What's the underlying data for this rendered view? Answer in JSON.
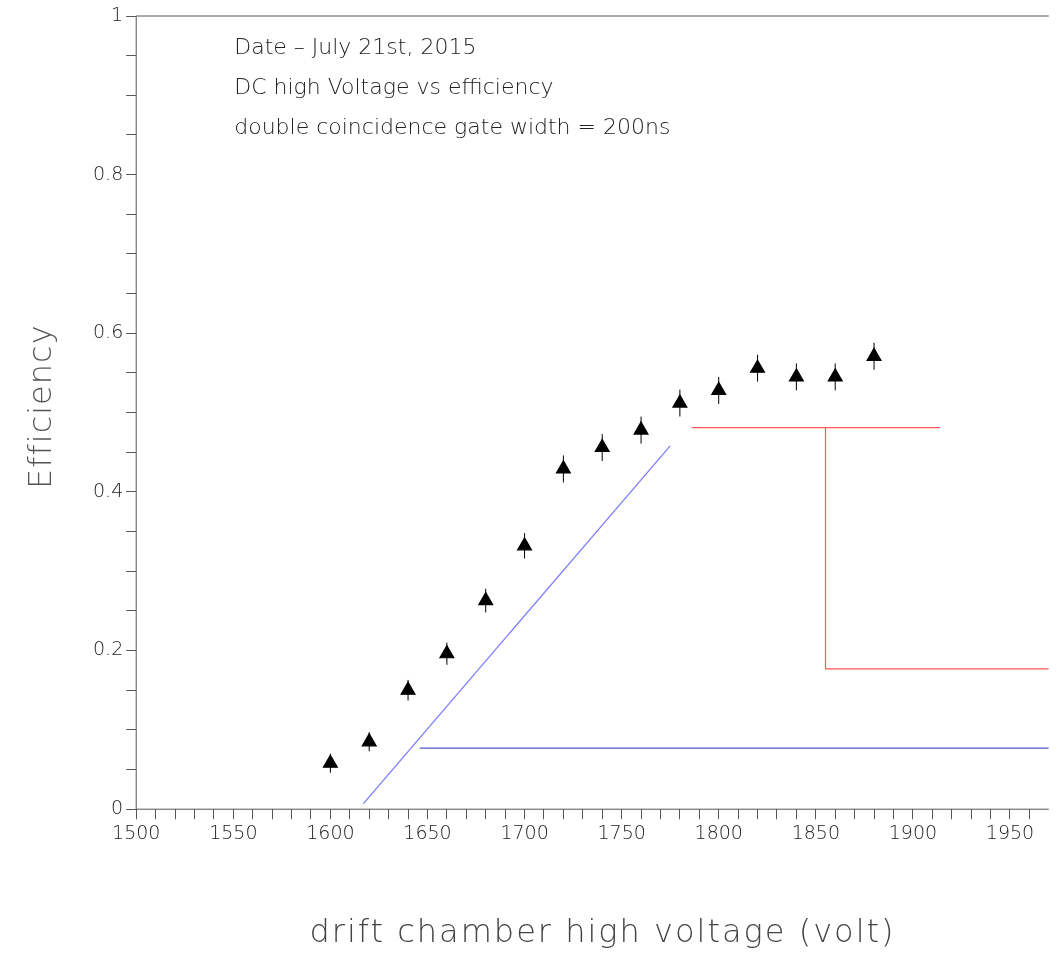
{
  "chart_data": {
    "type": "scatter",
    "xlabel": "drift chamber high voltage (volt)",
    "ylabel": "Efficiency",
    "annotations": [
      "Date – July 21st, 2015",
      "DC high Voltage vs efficiency",
      "double coincidence gate width = 200ns"
    ],
    "xlim": [
      1500,
      1970
    ],
    "ylim": [
      0,
      1
    ],
    "xticks": [
      1500,
      {
        "value": 1510,
        "label": null
      },
      {
        "value": 1520,
        "label": null
      },
      {
        "value": 1530,
        "label": null
      },
      {
        "value": 1540,
        "label": null
      },
      1550,
      {
        "value": 1560,
        "label": null
      },
      {
        "value": 1570,
        "label": null
      },
      {
        "value": 1580,
        "label": null
      },
      {
        "value": 1590,
        "label": null
      },
      1600,
      {
        "value": 1610,
        "label": null
      },
      {
        "value": 1620,
        "label": null
      },
      {
        "value": 1630,
        "label": null
      },
      {
        "value": 1640,
        "label": null
      },
      1650,
      {
        "value": 1660,
        "label": null
      },
      {
        "value": 1670,
        "label": null
      },
      {
        "value": 1680,
        "label": null
      },
      {
        "value": 1690,
        "label": null
      },
      1700,
      {
        "value": 1710,
        "label": null
      },
      {
        "value": 1720,
        "label": null
      },
      {
        "value": 1730,
        "label": null
      },
      {
        "value": 1740,
        "label": null
      },
      1750,
      {
        "value": 1760,
        "label": null
      },
      {
        "value": 1770,
        "label": null
      },
      {
        "value": 1780,
        "label": null
      },
      {
        "value": 1790,
        "label": null
      },
      1800,
      {
        "value": 1810,
        "label": null
      },
      {
        "value": 1820,
        "label": null
      },
      {
        "value": 1830,
        "label": null
      },
      {
        "value": 1840,
        "label": null
      },
      1850,
      {
        "value": 1860,
        "label": null
      },
      {
        "value": 1870,
        "label": null
      },
      {
        "value": 1880,
        "label": null
      },
      {
        "value": 1890,
        "label": null
      },
      1900,
      {
        "value": 1910,
        "label": null
      },
      {
        "value": 1920,
        "label": null
      },
      {
        "value": 1930,
        "label": null
      },
      {
        "value": 1940,
        "label": null
      },
      1950,
      {
        "value": 1960,
        "label": null
      }
    ],
    "yticks": [
      0,
      {
        "value": 0.05,
        "label": null
      },
      {
        "value": 0.1,
        "label": null
      },
      {
        "value": 0.15,
        "label": null
      },
      0.2,
      {
        "value": 0.25,
        "label": null
      },
      {
        "value": 0.3,
        "label": null
      },
      {
        "value": 0.35,
        "label": null
      },
      0.4,
      {
        "value": 0.45,
        "label": null
      },
      {
        "value": 0.5,
        "label": null
      },
      {
        "value": 0.55,
        "label": null
      },
      0.6,
      {
        "value": 0.65,
        "label": null
      },
      {
        "value": 0.7,
        "label": null
      },
      {
        "value": 0.75,
        "label": null
      },
      0.8,
      {
        "value": 0.85,
        "label": null
      },
      {
        "value": 0.9,
        "label": null
      },
      {
        "value": 0.95,
        "label": null
      },
      1
    ],
    "grid": false,
    "legend": false,
    "marker": "triangle",
    "x": [
      1600,
      1620,
      1640,
      1660,
      1680,
      1700,
      1720,
      1740,
      1760,
      1780,
      1800,
      1820,
      1840,
      1860,
      1880
    ],
    "series": [
      {
        "type": "scatter",
        "color": "#000000",
        "values": [
          0.058,
          0.085,
          0.15,
          0.196,
          0.263,
          0.332,
          0.429,
          0.456,
          0.478,
          0.512,
          0.528,
          0.556,
          0.545,
          0.545,
          0.571
        ],
        "errors": [
          0.012,
          0.012,
          0.013,
          0.014,
          0.015,
          0.016,
          0.017,
          0.017,
          0.017,
          0.017,
          0.017,
          0.017,
          0.017,
          0.017,
          0.017
        ]
      },
      {
        "type": "line",
        "color": "#7777ff",
        "marker": "none",
        "x": [
          1617,
          1775
        ],
        "values": [
          0.007,
          0.458
        ]
      },
      {
        "type": "line",
        "color": "#5555cc",
        "marker": "none",
        "x": [
          1646,
          1970
        ],
        "values": [
          0.077,
          0.077
        ]
      },
      {
        "type": "line",
        "color": "#ff5555",
        "marker": "none",
        "x": [
          1786,
          1914
        ],
        "values": [
          0.481,
          0.481
        ]
      },
      {
        "type": "line",
        "color": "#ff5555",
        "marker": "none",
        "x": [
          1855,
          1855,
          1970
        ],
        "values": [
          0.481,
          0.177,
          0.177
        ]
      }
    ]
  }
}
